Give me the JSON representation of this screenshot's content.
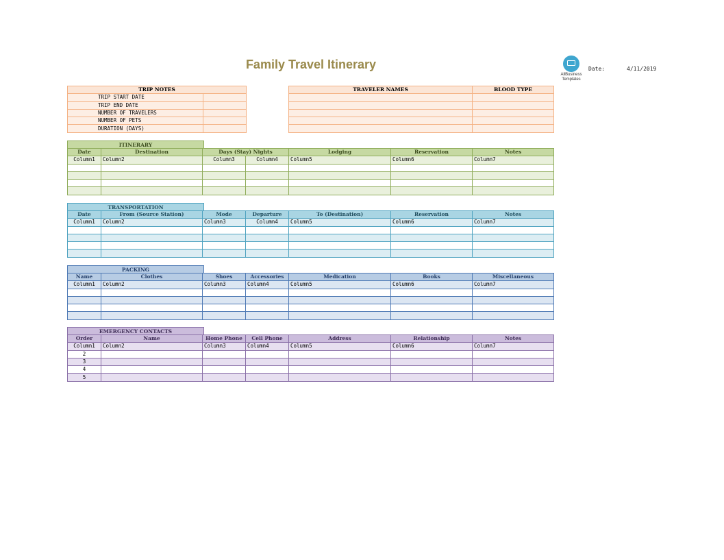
{
  "title": "Family Travel Itinerary",
  "logo": {
    "icon": "laptop-icon",
    "line1": "AllBusiness",
    "line2": "Templates"
  },
  "date": {
    "label": "Date:",
    "value": "4/11/2019"
  },
  "trip_notes": {
    "header": "TRIP NOTES",
    "rows": [
      "TRIP START DATE",
      "TRIP END DATE",
      "NUMBER OF TRAVELERS",
      "NUMBER OF PETS",
      "DURATION (DAYS)"
    ]
  },
  "travelers": {
    "names_header": "TRAVELER NAMES",
    "blood_header": "BLOOD TYPE"
  },
  "itinerary": {
    "section": "ITINERARY",
    "columns": [
      "Date",
      "Destination",
      "Days (Stay) Nights",
      "",
      "Lodging",
      "Reservation",
      "Notes"
    ],
    "first_row": [
      "Column1",
      "Column2",
      "Column3",
      "Column4",
      "Column5",
      "Column6",
      "Column7"
    ]
  },
  "transportation": {
    "section": "TRANSPORTATION",
    "columns": [
      "Date",
      "From (Source Station)",
      "Mode",
      "Departure",
      "To (Destination)",
      "Reservation",
      "Notes"
    ],
    "first_row": [
      "Column1",
      "Column2",
      "Column3",
      "Column4",
      "Column5",
      "Column6",
      "Column7"
    ]
  },
  "packing": {
    "section": "PACKING",
    "columns": [
      "Name",
      "Clothes",
      "Shoes",
      "Accessories",
      "Medication",
      "Books",
      "Miscellaneous"
    ],
    "first_row": [
      "Column1",
      "Column2",
      "Column3",
      "Column4",
      "Column5",
      "Column6",
      "Column7"
    ]
  },
  "emergency": {
    "section": "EMERGENCY CONTACTS",
    "columns": [
      "Order",
      "Name",
      "Home Phone",
      "Cell Phone",
      "Address",
      "Relationship",
      "Notes"
    ],
    "first_row": [
      "Column1",
      "Column2",
      "Column3",
      "Column4",
      "Column5",
      "Column6",
      "Column7"
    ],
    "orders": [
      "2",
      "3",
      "4",
      "5"
    ]
  }
}
